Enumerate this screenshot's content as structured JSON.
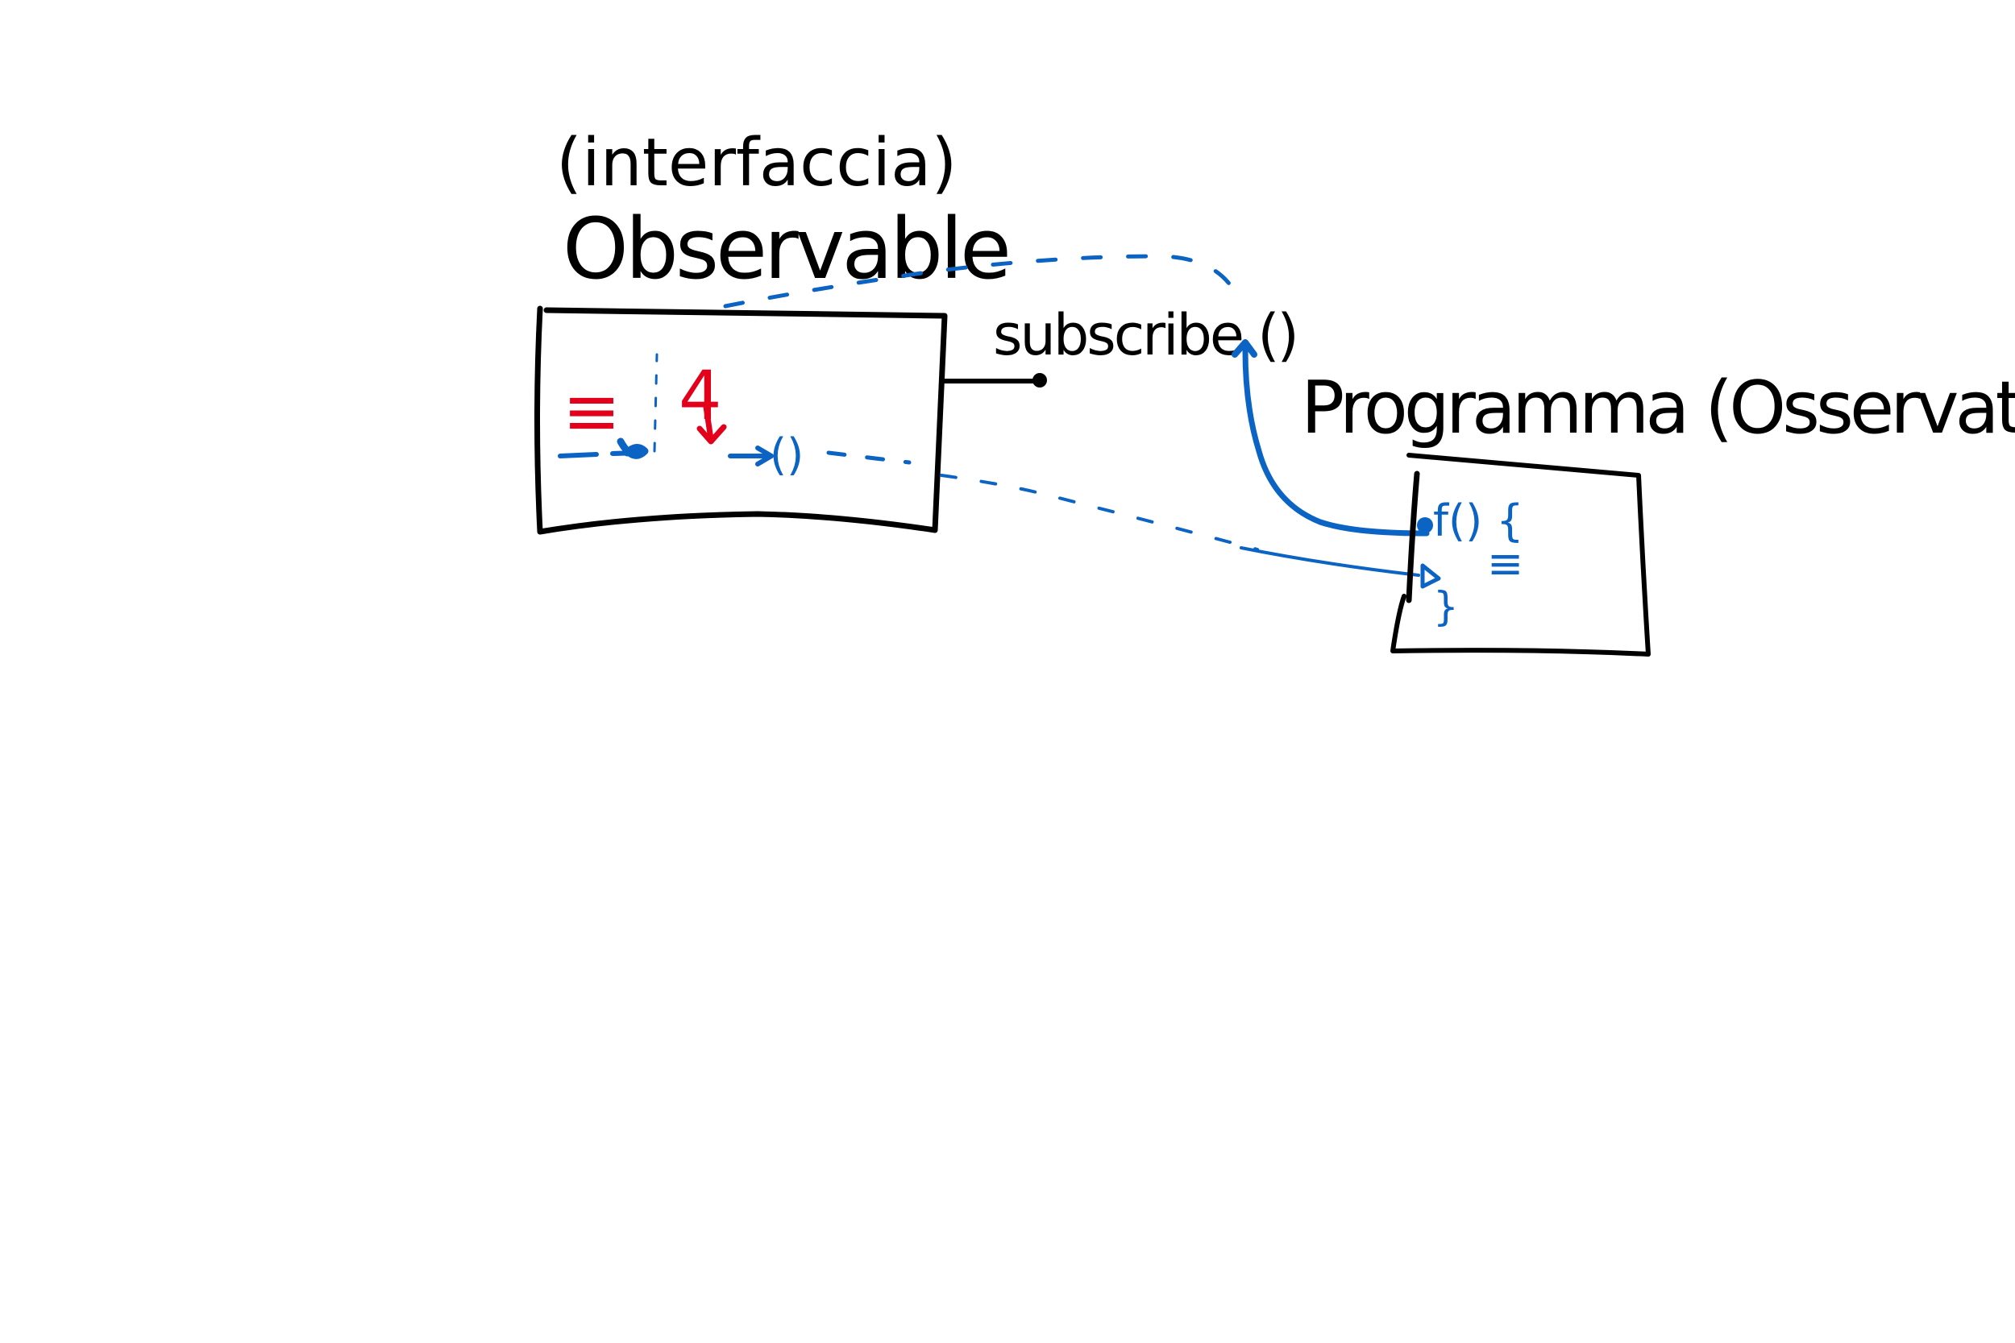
{
  "observable": {
    "caption": "(interfaccia)",
    "title": "Observable",
    "marks": {
      "lines_symbol": "≡",
      "value": "4",
      "call_paren": "()"
    }
  },
  "subscribe": {
    "label": "subscribe ()"
  },
  "observer": {
    "title": "Programma (Osservatore)",
    "func_signature": "f() {",
    "body_lines": "≡",
    "closing_brace": "}"
  },
  "colors": {
    "ink_black": "#000000",
    "ink_blue": "#0b63c4",
    "ink_red": "#e3001b",
    "background": "#ffffff"
  }
}
